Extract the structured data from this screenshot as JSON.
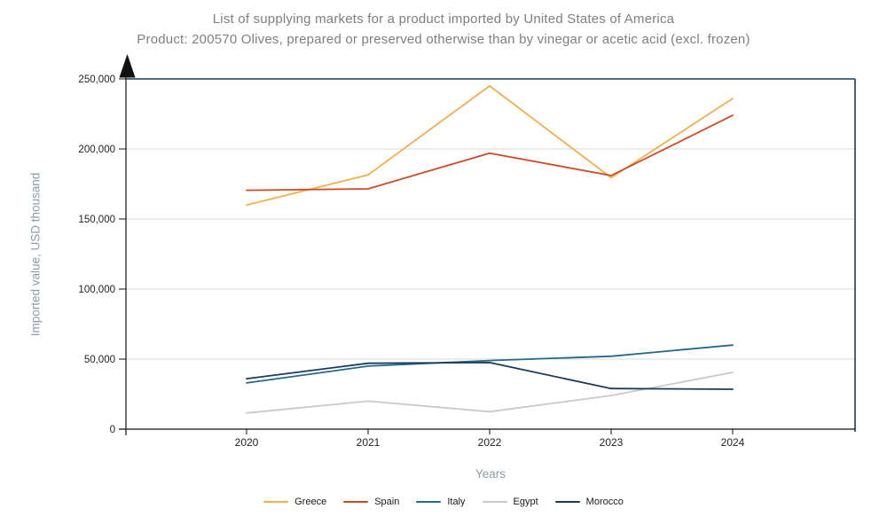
{
  "chart_data": {
    "type": "line",
    "title": "List of supplying markets for a product imported by United States of America",
    "subtitle": "Product: 200570 Olives, prepared or preserved otherwise than by vinegar or acetic acid (excl. frozen)",
    "xlabel": "Years",
    "ylabel": "Imported value, USD thousand",
    "categories": [
      "2020",
      "2021",
      "2022",
      "2023",
      "2024"
    ],
    "series": [
      {
        "name": "Greece",
        "color": "#F2AF4E",
        "values": [
          160000,
          181500,
          245000,
          179500,
          236000
        ]
      },
      {
        "name": "Spain",
        "color": "#CE4A21",
        "values": [
          170500,
          171500,
          197000,
          181000,
          224000
        ]
      },
      {
        "name": "Italy",
        "color": "#26688C",
        "values": [
          33000,
          45000,
          49000,
          52000,
          60000
        ]
      },
      {
        "name": "Egypt",
        "color": "#C9C9C9",
        "values": [
          11500,
          20000,
          12500,
          24000,
          40500
        ]
      },
      {
        "name": "Morocco",
        "color": "#1B3A5C",
        "values": [
          36000,
          47000,
          47500,
          29000,
          28500
        ]
      }
    ],
    "ylim": [
      0,
      250000
    ],
    "ytick_step": 50000,
    "ytick_labels": [
      "0",
      "50,000",
      "100,000",
      "150,000",
      "200,000",
      "250,000"
    ],
    "grid": true,
    "legend_position": "bottom",
    "y_axis_cap": "arrow-up-icon",
    "style_colors": {
      "title_text": "#7f7f7f",
      "axis_title_text": "#8e9cab",
      "tick_text": "#1f1f1f",
      "gridline": "#d9d9d9",
      "plot_border": "#1B3A5C",
      "axis_line": "#111111",
      "background": "#ffffff"
    }
  }
}
